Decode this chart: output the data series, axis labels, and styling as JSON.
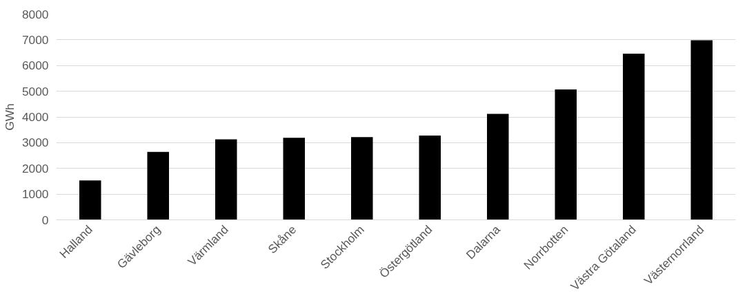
{
  "chart_data": {
    "type": "bar",
    "ylabel": "GWh",
    "categories": [
      "Halland",
      "Gävleborg",
      "Värmland",
      "Skåne",
      "Stockholm",
      "Östergötland",
      "Dalarna",
      "Norrbotten",
      "Västra Götaland",
      "Västernorrland"
    ],
    "values": [
      1530,
      2640,
      3130,
      3190,
      3220,
      3280,
      4120,
      5070,
      6460,
      6980
    ],
    "color": "#000000",
    "ylim": [
      0,
      8000
    ],
    "yticks": [
      0,
      1000,
      2000,
      3000,
      4000,
      5000,
      6000,
      7000,
      8000
    ],
    "grid": "y"
  }
}
